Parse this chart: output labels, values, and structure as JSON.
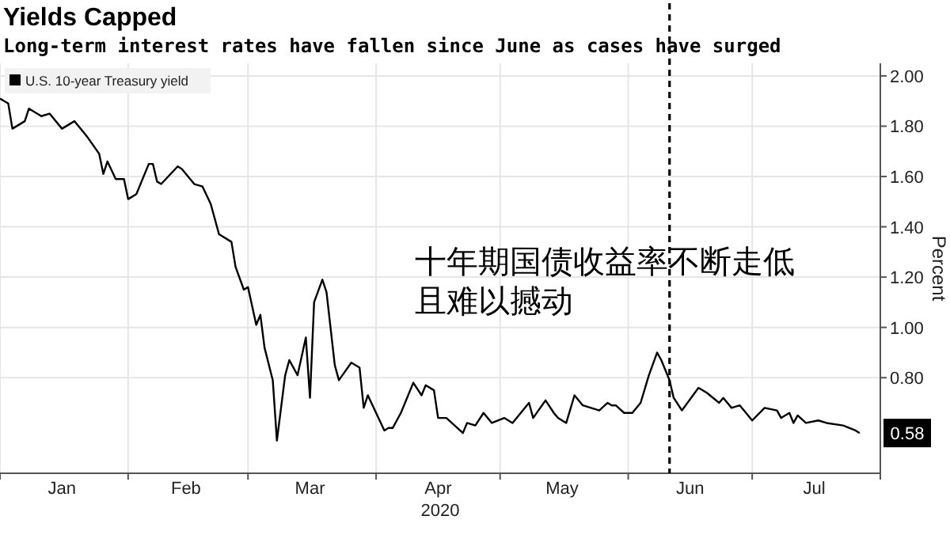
{
  "chart_data": {
    "type": "line",
    "title": "Yields Capped",
    "subtitle": "Long-term interest rates have fallen since June as cases have surged",
    "xlabel": "2020",
    "ylabel": "Percent",
    "x": [
      "2020-01-01",
      "2020-01-03",
      "2020-01-04",
      "2020-01-07",
      "2020-01-08",
      "2020-01-11",
      "2020-01-13",
      "2020-01-16",
      "2020-01-19",
      "2020-01-21",
      "2020-01-22",
      "2020-01-25",
      "2020-01-26",
      "2020-01-27",
      "2020-01-29",
      "2020-01-31",
      "2020-02-01",
      "2020-02-03",
      "2020-02-06",
      "2020-02-07",
      "2020-02-08",
      "2020-02-09",
      "2020-02-13",
      "2020-02-14",
      "2020-02-17",
      "2020-02-19",
      "2020-02-21",
      "2020-02-23",
      "2020-02-26",
      "2020-02-27",
      "2020-02-29",
      "2020-03-01",
      "2020-03-03",
      "2020-03-04",
      "2020-03-05",
      "2020-03-07",
      "2020-03-08",
      "2020-03-10",
      "2020-03-11",
      "2020-03-13",
      "2020-03-15",
      "2020-03-16",
      "2020-03-17",
      "2020-03-19",
      "2020-03-20",
      "2020-03-22",
      "2020-03-23",
      "2020-03-26",
      "2020-03-28",
      "2020-03-29",
      "2020-03-30",
      "2020-04-01",
      "2020-04-03",
      "2020-04-04",
      "2020-04-05",
      "2020-04-07",
      "2020-04-10",
      "2020-04-12",
      "2020-04-13",
      "2020-04-15",
      "2020-04-16",
      "2020-04-18",
      "2020-04-22",
      "2020-04-23",
      "2020-04-25",
      "2020-04-27",
      "2020-04-29",
      "2020-05-02",
      "2020-05-04",
      "2020-05-08",
      "2020-05-09",
      "2020-05-12",
      "2020-05-14",
      "2020-05-15",
      "2020-05-17",
      "2020-05-19",
      "2020-05-21",
      "2020-05-25",
      "2020-05-27",
      "2020-05-28",
      "2020-05-29",
      "2020-05-31",
      "2020-06-02",
      "2020-06-04",
      "2020-06-06",
      "2020-06-08",
      "2020-06-09",
      "2020-06-11",
      "2020-06-12",
      "2020-06-14",
      "2020-06-18",
      "2020-06-20",
      "2020-06-23",
      "2020-06-24",
      "2020-06-26",
      "2020-06-28",
      "2020-07-01",
      "2020-07-04",
      "2020-07-07",
      "2020-07-08",
      "2020-07-10",
      "2020-07-11",
      "2020-07-12",
      "2020-07-14",
      "2020-07-17",
      "2020-07-19",
      "2020-07-23",
      "2020-07-26",
      "2020-07-27"
    ],
    "series": [
      {
        "name": "U.S. 10-year Treasury yield",
        "color": "#000000",
        "values": [
          1.91,
          1.89,
          1.79,
          1.82,
          1.87,
          1.84,
          1.85,
          1.79,
          1.82,
          1.78,
          1.76,
          1.69,
          1.61,
          1.66,
          1.59,
          1.59,
          1.51,
          1.53,
          1.65,
          1.65,
          1.58,
          1.57,
          1.64,
          1.63,
          1.57,
          1.56,
          1.49,
          1.37,
          1.34,
          1.24,
          1.15,
          1.16,
          1.01,
          1.05,
          0.92,
          0.79,
          0.55,
          0.81,
          0.87,
          0.81,
          0.96,
          0.72,
          1.1,
          1.19,
          1.14,
          0.85,
          0.79,
          0.86,
          0.84,
          0.68,
          0.73,
          0.66,
          0.59,
          0.6,
          0.6,
          0.66,
          0.78,
          0.73,
          0.77,
          0.75,
          0.64,
          0.64,
          0.58,
          0.62,
          0.61,
          0.66,
          0.62,
          0.64,
          0.62,
          0.7,
          0.64,
          0.71,
          0.66,
          0.64,
          0.62,
          0.73,
          0.69,
          0.67,
          0.7,
          0.69,
          0.69,
          0.66,
          0.66,
          0.7,
          0.81,
          0.9,
          0.87,
          0.79,
          0.72,
          0.67,
          0.76,
          0.74,
          0.7,
          0.72,
          0.68,
          0.69,
          0.63,
          0.68,
          0.67,
          0.64,
          0.66,
          0.62,
          0.65,
          0.62,
          0.63,
          0.62,
          0.61,
          0.59,
          0.58
        ]
      }
    ],
    "xlim": [
      "2020-01-01",
      "2020-08-01"
    ],
    "xticks": [
      {
        "value": "2020-01-01",
        "label": null
      },
      {
        "value": "2020-01-16",
        "label": "Jan"
      },
      {
        "value": "2020-02-01",
        "label": null
      },
      {
        "value": "2020-02-15",
        "label": "Feb"
      },
      {
        "value": "2020-03-01",
        "label": null
      },
      {
        "value": "2020-03-16",
        "label": "Mar"
      },
      {
        "value": "2020-04-01",
        "label": null
      },
      {
        "value": "2020-04-16",
        "label": "Apr"
      },
      {
        "value": "2020-05-01",
        "label": null
      },
      {
        "value": "2020-05-16",
        "label": "May"
      },
      {
        "value": "2020-06-01",
        "label": null
      },
      {
        "value": "2020-06-16",
        "label": "Jun"
      },
      {
        "value": "2020-07-01",
        "label": null
      },
      {
        "value": "2020-07-16",
        "label": "Jul"
      },
      {
        "value": "2020-08-01",
        "label": null
      }
    ],
    "ylim": [
      0.42,
      2.05
    ],
    "yticks": [
      {
        "value": 0.8,
        "label": "0.80"
      },
      {
        "value": 1.0,
        "label": "1.00"
      },
      {
        "value": 1.2,
        "label": "1.20"
      },
      {
        "value": 1.4,
        "label": "1.40"
      },
      {
        "value": 1.6,
        "label": "1.60"
      },
      {
        "value": 1.8,
        "label": "1.80"
      },
      {
        "value": 2.0,
        "label": "2.00"
      }
    ],
    "grid": true,
    "legend": "top left",
    "marker": "none",
    "line_style": "solid",
    "ref_lines": [
      {
        "axis": "x",
        "value": "2020-06-11",
        "line_style": "dashed",
        "color": "#000000"
      }
    ],
    "annotations": [
      "十年期国债收益率不断走低",
      "且难以撼动",
      {
        "text": "0.58",
        "x": "2020-07-27",
        "y": 0.58
      }
    ]
  }
}
